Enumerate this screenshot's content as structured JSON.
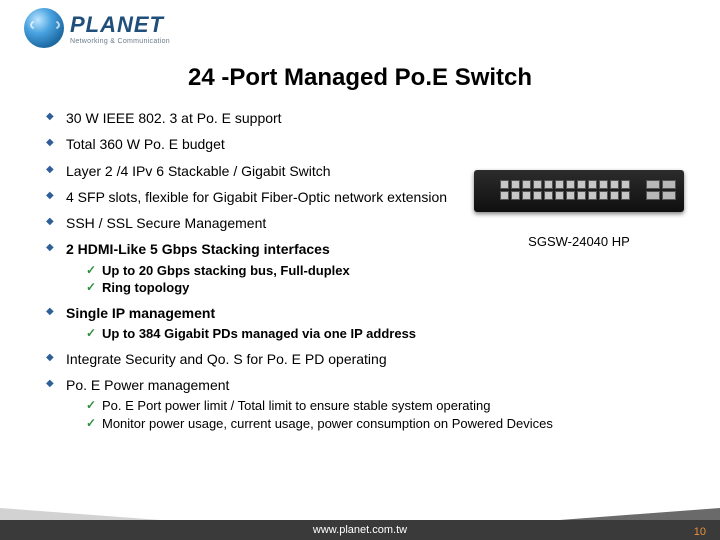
{
  "header": {
    "brand": "PLANET",
    "tagline": "Networking & Communication"
  },
  "title": "24 -Port Managed Po.E Switch",
  "product": {
    "model": "SGSW-24040 HP",
    "body_color": "#1a1a1a",
    "port_color": "#c7c7c7"
  },
  "items": [
    {
      "text": "30 W IEEE 802. 3 at Po. E support"
    },
    {
      "text": "Total 360 W Po. E budget"
    },
    {
      "text": "Layer 2 /4 IPv 6 Stackable / Gigabit Switch"
    },
    {
      "text": "4 SFP slots, flexible for Gigabit Fiber-Optic network extension"
    },
    {
      "text": "SSH / SSL Secure Management"
    },
    {
      "text": "2 HDMI-Like 5 Gbps Stacking interfaces",
      "sub": [
        "Up to 20 Gbps stacking bus, Full-duplex",
        "Ring topology"
      ]
    },
    {
      "text": "Single IP management",
      "sub": [
        "Up to 384 Gigabit PDs managed via one IP address"
      ]
    },
    {
      "text": "Integrate Security and Qo. S for Po. E PD operating"
    },
    {
      "text": "Po. E Power management",
      "sub": [
        "Po. E Port power limit / Total limit to ensure stable system operating",
        "Monitor power usage, current usage, power consumption on Powered Devices"
      ]
    }
  ],
  "footer": {
    "url": "www.planet.com.tw",
    "page": "10"
  },
  "colors": {
    "bullet": "#2f5f98",
    "check": "#2f8f3f",
    "footer_bg": "#3a3a3a",
    "pagenum": "#e9913a",
    "logo_text": "#1f4f7a"
  },
  "typography": {
    "title_size_pt": 18,
    "body_size_pt": 11,
    "sub_size_pt": 10,
    "font_family": "Verdana"
  }
}
